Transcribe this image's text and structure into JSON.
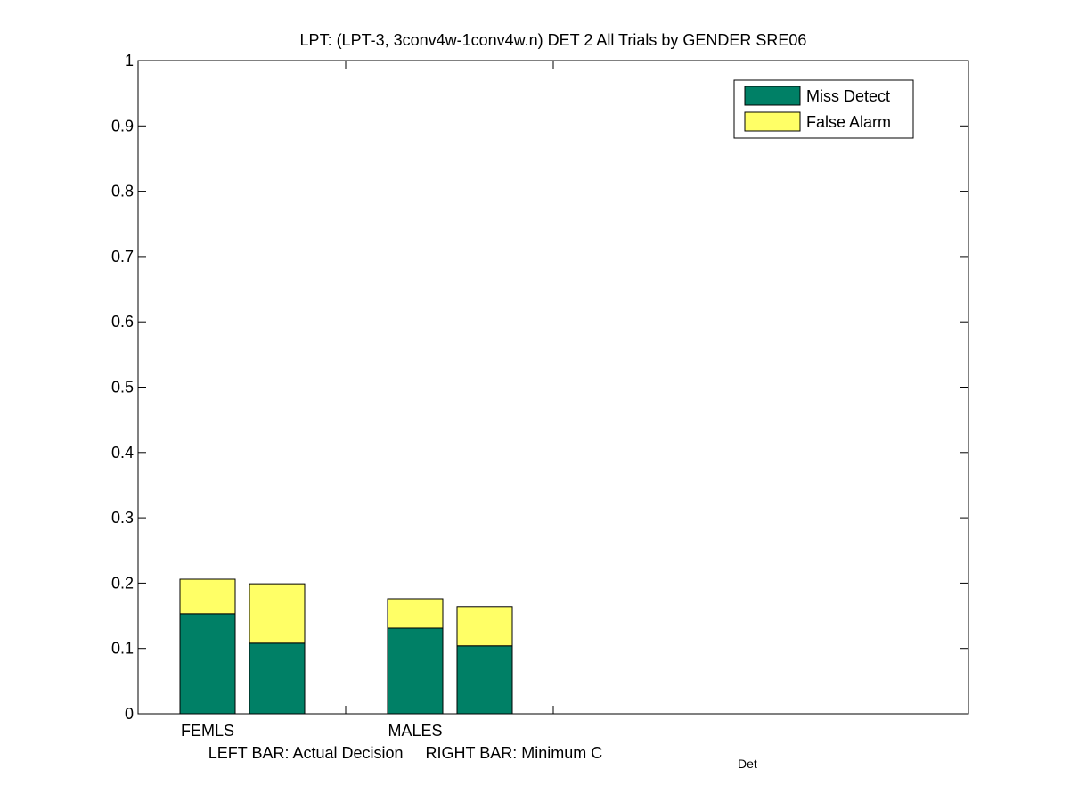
{
  "chart_data": {
    "type": "bar",
    "stacked": true,
    "title": "LPT: (LPT-3, 3conv4w-1conv4w.n) DET 2 All Trials by GENDER SRE06",
    "xlabel_main": "LEFT BAR: Actual Decision     RIGHT BAR: Minimum C",
    "xlabel_subscript": "Det",
    "ylabel": "",
    "ylim": [
      0,
      1
    ],
    "yticks": [
      "0",
      "0.1",
      "0.2",
      "0.3",
      "0.4",
      "0.5",
      "0.6",
      "0.7",
      "0.8",
      "0.9",
      "1"
    ],
    "categories": [
      "FEMLS",
      "MALES"
    ],
    "bar_roles": [
      "Actual Decision",
      "Minimum C_Det"
    ],
    "series": [
      {
        "name": "Miss Detect",
        "color": "#008066",
        "values": [
          [
            0.153,
            0.108
          ],
          [
            0.131,
            0.104
          ]
        ]
      },
      {
        "name": "False Alarm",
        "color": "#ffff66",
        "values": [
          [
            0.053,
            0.091
          ],
          [
            0.045,
            0.06
          ]
        ]
      }
    ],
    "legend_position": "top-right",
    "grid": false
  }
}
